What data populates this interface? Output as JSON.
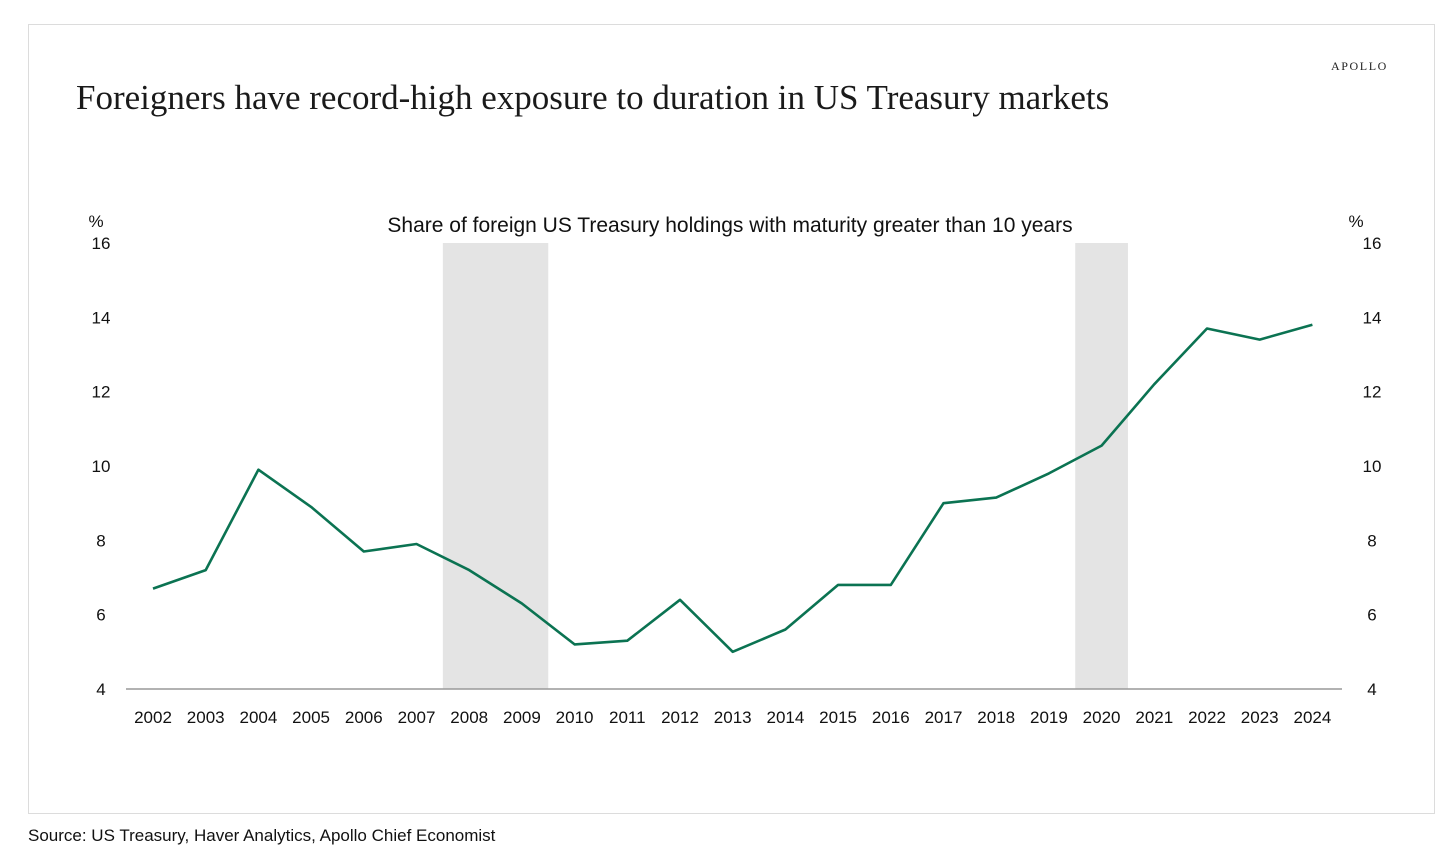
{
  "brand": "APOLLO",
  "title": "Foreigners have record-high exposure to duration in US Treasury markets",
  "footer": {
    "source": "Source: US Treasury, Haver Analytics, Apollo Chief Economist"
  },
  "colors": {
    "line": "#0b7352",
    "recession": "#e4e4e4",
    "axis": "#999999"
  },
  "chart_data": {
    "type": "line",
    "title": "Share of foreign US Treasury holdings with maturity greater than 10 years",
    "ylabel_left": "%",
    "ylabel_right": "%",
    "ylim": [
      4,
      16
    ],
    "yticks": [
      4,
      6,
      8,
      10,
      12,
      14,
      16
    ],
    "categories": [
      "2002",
      "2003",
      "2004",
      "2005",
      "2006",
      "2007",
      "2008",
      "2009",
      "2010",
      "2011",
      "2012",
      "2013",
      "2014",
      "2015",
      "2016",
      "2017",
      "2018",
      "2019",
      "2020",
      "2021",
      "2022",
      "2023",
      "2024"
    ],
    "series": [
      {
        "name": "Share of foreign US Treasury holdings with maturity greater than 10 years",
        "values": [
          6.7,
          7.2,
          9.9,
          8.9,
          7.7,
          7.9,
          7.2,
          6.3,
          5.2,
          5.3,
          6.4,
          5.0,
          5.6,
          6.8,
          6.8,
          9.0,
          9.15,
          9.8,
          10.55,
          12.2,
          13.7,
          13.4,
          13.8
        ]
      }
    ],
    "recession_shading": [
      {
        "start": 2007.5,
        "end": 2009.5
      },
      {
        "start": 2019.5,
        "end": 2020.5
      }
    ]
  }
}
